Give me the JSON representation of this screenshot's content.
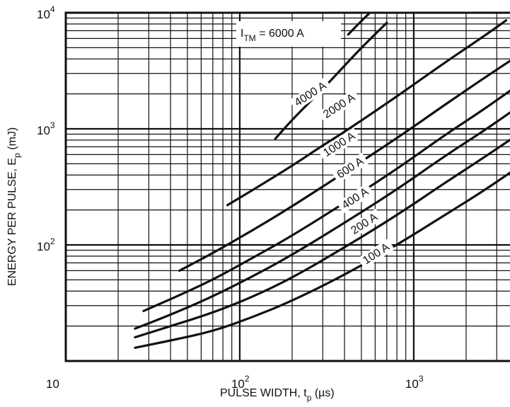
{
  "chart_data": {
    "type": "line",
    "title": "",
    "xlabel": {
      "main": "PULSE WIDTH, t",
      "sub": "p",
      "unit": " (µs)"
    },
    "ylabel": {
      "main": "ENERGY PER PULSE, E",
      "sub": "p",
      "unit": " (mJ)"
    },
    "x_scale": "log",
    "y_scale": "log",
    "xlim": [
      10,
      4000
    ],
    "ylim": [
      10,
      10000
    ],
    "grid": true,
    "x_ticks": [
      {
        "value": 10,
        "base": "10",
        "exp": ""
      },
      {
        "value": 100,
        "base": "10",
        "exp": "2"
      },
      {
        "value": 1000,
        "base": "10",
        "exp": "3"
      }
    ],
    "y_ticks": [
      {
        "value": 100,
        "base": "10",
        "exp": "2"
      },
      {
        "value": 1000,
        "base": "10",
        "exp": "3"
      },
      {
        "value": 10000,
        "base": "10",
        "exp": "4"
      }
    ],
    "legend_header": {
      "main": "I",
      "sub": "TM",
      "suffix": " =  6000 A"
    },
    "series": [
      {
        "name": "100 A",
        "x": [
          25,
          40,
          70,
          120,
          200,
          400,
          800,
          1500,
          2500,
          4000
        ],
        "y": [
          13,
          15,
          18,
          24,
          33,
          55,
          100,
          180,
          290,
          470
        ]
      },
      {
        "name": "200 A",
        "x": [
          25,
          40,
          70,
          120,
          200,
          400,
          800,
          1500,
          2500,
          4000
        ],
        "y": [
          16,
          20,
          26,
          36,
          52,
          95,
          180,
          340,
          560,
          900
        ]
      },
      {
        "name": "400 A",
        "x": [
          25,
          40,
          70,
          120,
          200,
          400,
          800,
          1500,
          2500,
          4000
        ],
        "y": [
          19,
          25,
          36,
          54,
          82,
          155,
          300,
          580,
          950,
          1550
        ]
      },
      {
        "name": "600 A",
        "x": [
          28,
          40,
          70,
          120,
          200,
          400,
          800,
          1500,
          2500,
          4000
        ],
        "y": [
          27,
          34,
          50,
          78,
          120,
          230,
          450,
          880,
          1450,
          2400
        ]
      },
      {
        "name": "1000 A",
        "x": [
          45,
          70,
          120,
          200,
          400,
          800,
          1500,
          2500,
          4000
        ],
        "y": [
          60,
          85,
          135,
          215,
          420,
          830,
          1600,
          2700,
          4300
        ]
      },
      {
        "name": "2000 A",
        "x": [
          85,
          120,
          200,
          300,
          400,
          800,
          1500,
          2500,
          3400
        ],
        "y": [
          220,
          300,
          480,
          720,
          940,
          1900,
          3700,
          6200,
          8600
        ]
      },
      {
        "name": "4000 A",
        "x": [
          160,
          200,
          300,
          400,
          500,
          700
        ],
        "y": [
          820,
          1200,
          2200,
          3500,
          5000,
          8200
        ]
      },
      {
        "name": "6000 A",
        "x": [
          420,
          500,
          560
        ],
        "y": [
          6500,
          8500,
          10000
        ]
      }
    ],
    "curve_labels": [
      "4000 A",
      "2000 A",
      "1000 A",
      "600 A",
      "400 A",
      "200 A",
      "100 A"
    ]
  }
}
